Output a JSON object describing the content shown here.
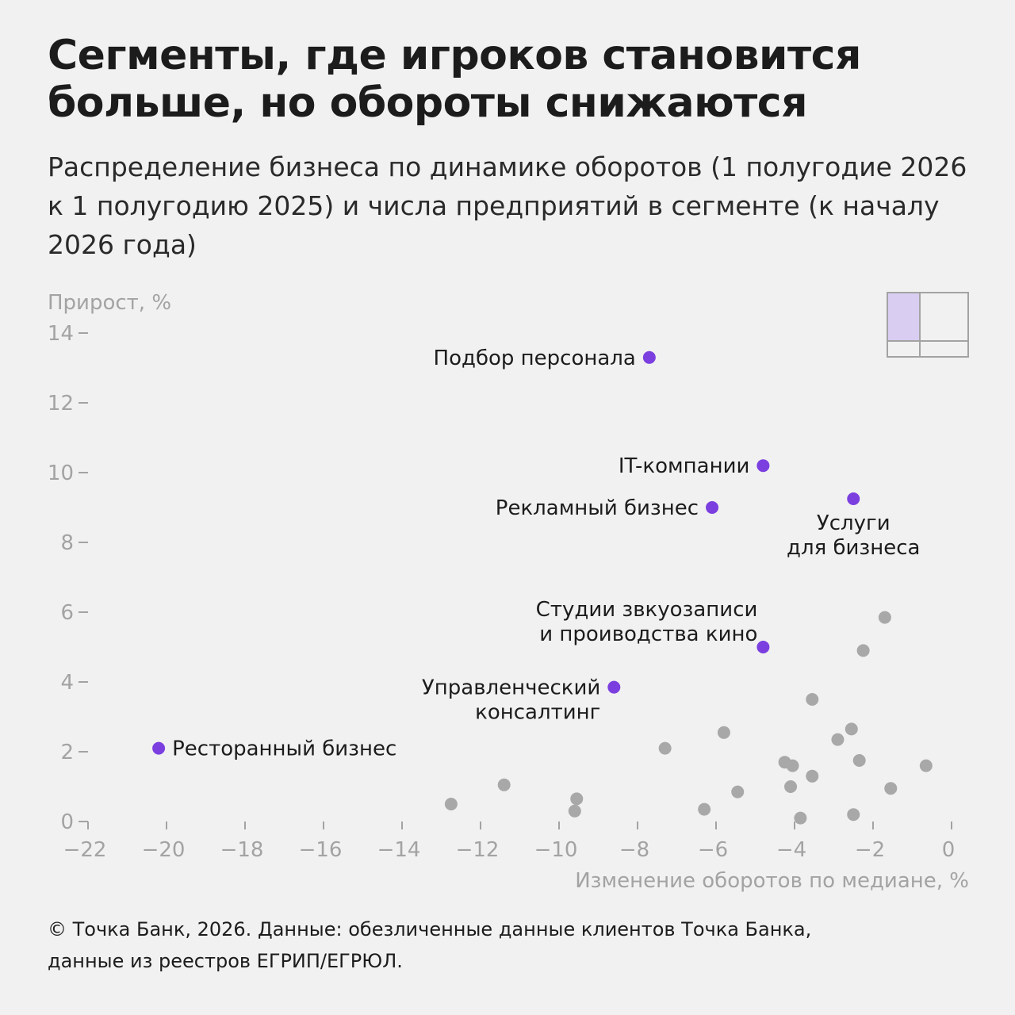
{
  "header": {
    "title": "Сегменты, где игроков становится больше, но обороты снижаются",
    "subtitle": "Распределение бизнеса по динамике оборотов (1 полугодие 2026 к 1 полугодию 2025) и числа предприятий в сегменте (к началу 2026 года)"
  },
  "footer": {
    "line1": "© Точка Банк, 2026. Данные: обезличенные данные клиентов Точка Банка,",
    "line2": "данные из реестров ЕГРИП/ЕГРЮЛ."
  },
  "colors": {
    "highlight": "#7b3fe0",
    "other": "#a8a8a8",
    "axis": "#a3a3a3",
    "legend_fill": "#d9cdf1"
  },
  "chart_data": {
    "type": "scatter",
    "xlabel": "Изменение оборотов по медиане, %",
    "ylabel": "Прирост, %",
    "xlim": [
      -22,
      0
    ],
    "ylim": [
      0,
      14
    ],
    "xticks": [
      -22,
      -20,
      -18,
      -16,
      -14,
      -12,
      -10,
      -8,
      -6,
      -4,
      -2,
      0
    ],
    "yticks": [
      0,
      2,
      4,
      6,
      8,
      10,
      12,
      14
    ],
    "grid": false,
    "legend": "top-right quadrant icon",
    "highlighted": [
      {
        "label": "Подбор персонала",
        "x": -7.7,
        "y": 13.3,
        "label_side": "left"
      },
      {
        "label": "IT-компании",
        "x": -4.8,
        "y": 10.2,
        "label_side": "left"
      },
      {
        "label": "Рекламный бизнес",
        "x": -6.1,
        "y": 9.0,
        "label_side": "left"
      },
      {
        "label": "Услуги\nдля бизнеса",
        "x": -2.5,
        "y": 9.25,
        "label_side": "below"
      },
      {
        "label": "Студии звкуозаписи\nи проиводства кино",
        "x": -4.8,
        "y": 5.0,
        "label_side": "left-above"
      },
      {
        "label": "Управленческий\nконсалтинг",
        "x": -8.6,
        "y": 3.85,
        "label_side": "left"
      },
      {
        "label": "Ресторанный бизнес",
        "x": -20.2,
        "y": 2.1,
        "label_side": "right"
      }
    ],
    "others": [
      {
        "x": -1.7,
        "y": 5.85
      },
      {
        "x": -2.25,
        "y": 4.9
      },
      {
        "x": -3.55,
        "y": 3.5
      },
      {
        "x": -2.55,
        "y": 2.65
      },
      {
        "x": -2.9,
        "y": 2.35
      },
      {
        "x": -5.8,
        "y": 2.55
      },
      {
        "x": -7.3,
        "y": 2.1
      },
      {
        "x": -2.35,
        "y": 1.75
      },
      {
        "x": -4.25,
        "y": 1.7
      },
      {
        "x": -4.05,
        "y": 1.6
      },
      {
        "x": -0.65,
        "y": 1.6
      },
      {
        "x": -3.55,
        "y": 1.3
      },
      {
        "x": -4.1,
        "y": 1.0
      },
      {
        "x": -1.55,
        "y": 0.95
      },
      {
        "x": -5.45,
        "y": 0.85
      },
      {
        "x": -11.4,
        "y": 1.05
      },
      {
        "x": -9.55,
        "y": 0.65
      },
      {
        "x": -12.75,
        "y": 0.5
      },
      {
        "x": -9.6,
        "y": 0.3
      },
      {
        "x": -6.3,
        "y": 0.35
      },
      {
        "x": -3.85,
        "y": 0.1
      },
      {
        "x": -2.5,
        "y": 0.2
      }
    ]
  }
}
